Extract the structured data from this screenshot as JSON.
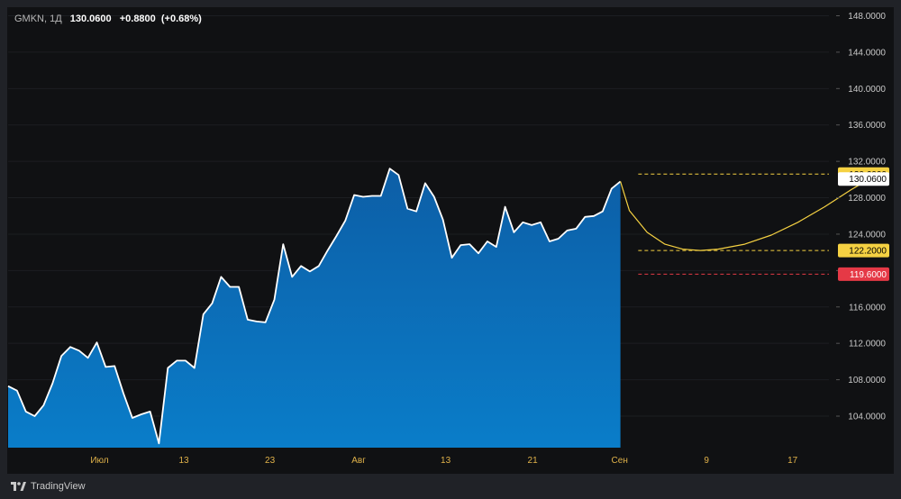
{
  "header": {
    "symbol": "GMKN",
    "separator": ",",
    "interval": "1Д",
    "last": "130.0600",
    "change": "+0.8800",
    "change_pct": "(+0.68%)"
  },
  "branding": {
    "name": "TradingView"
  },
  "colors": {
    "background": "#101113",
    "area_top": "#0d5ea6",
    "area_bottom": "#0a7dc9",
    "line": "#ffffff",
    "forecast": "#f5d142",
    "target_label": "#f5d142",
    "stop_label": "#e53946",
    "axis_text": "#c9c9c9",
    "date_text": "#e0b24a",
    "grid": "#1c1e22"
  },
  "chart_data": {
    "type": "area",
    "ylim": [
      100,
      149
    ],
    "y_ticks": [
      "104.0000",
      "108.0000",
      "112.0000",
      "116.0000",
      "120.0000",
      "124.0000",
      "128.0000",
      "132.0000",
      "136.0000",
      "140.0000",
      "144.0000",
      "148.0000"
    ],
    "y_tick_values": [
      104,
      108,
      112,
      116,
      120,
      124,
      128,
      132,
      136,
      140,
      144,
      148
    ],
    "x_ticks": [
      {
        "label": "Июл",
        "index": 10.3
      },
      {
        "label": "13",
        "index": 19.8
      },
      {
        "label": "23",
        "index": 29.5
      },
      {
        "label": "Авг",
        "index": 39.5
      },
      {
        "label": "13",
        "index": 49.3
      },
      {
        "label": "21",
        "index": 59.1
      },
      {
        "label": "Сен",
        "index": 68.9
      },
      {
        "label": "9",
        "index": 78.7
      },
      {
        "label": "17",
        "index": 88.4
      }
    ],
    "x_range": [
      0,
      112
    ],
    "series": [
      {
        "values": [
          107.3,
          106.8,
          104.5,
          104.0,
          105.2,
          107.6,
          110.6,
          111.6,
          111.2,
          110.4,
          112.1,
          109.4,
          109.5,
          106.5,
          103.8,
          104.2,
          104.5,
          101.0,
          109.3,
          110.1,
          110.1,
          109.3,
          115.2,
          116.4,
          119.3,
          118.2,
          118.2,
          114.6,
          114.4,
          114.3,
          116.8,
          122.9,
          119.3,
          120.5,
          119.9,
          120.5,
          122.2,
          123.8,
          125.5,
          128.3,
          128.1,
          128.2,
          128.2,
          131.2,
          130.5,
          126.8,
          126.5,
          129.6,
          128.1,
          125.6,
          121.4,
          122.8,
          122.9,
          121.9,
          123.2,
          122.6,
          127.0,
          124.2,
          125.3,
          125.0,
          125.3,
          123.2,
          123.5,
          124.4,
          124.6,
          125.9,
          126.0,
          126.5,
          129.0,
          129.8
        ]
      }
    ],
    "forecast": {
      "x": [
        69,
        70,
        72,
        74,
        76,
        78,
        80,
        83,
        86,
        89,
        92,
        95,
        97.3
      ],
      "y": [
        129.8,
        126.6,
        124.2,
        122.9,
        122.35,
        122.2,
        122.35,
        122.9,
        123.9,
        125.3,
        127.0,
        128.9,
        130.2
      ]
    },
    "levels": [
      {
        "value": 130.6,
        "label": "130.6000",
        "style": "dashed-yellow",
        "x_start": 71
      },
      {
        "value": 122.2,
        "label": "122.2000",
        "style": "dashed-yellow",
        "x_start": 71
      },
      {
        "value": 119.6,
        "label": "119.6000",
        "style": "dashed-red",
        "x_start": 71
      }
    ],
    "last_price": {
      "value": 130.06,
      "label": "130.0600"
    }
  }
}
